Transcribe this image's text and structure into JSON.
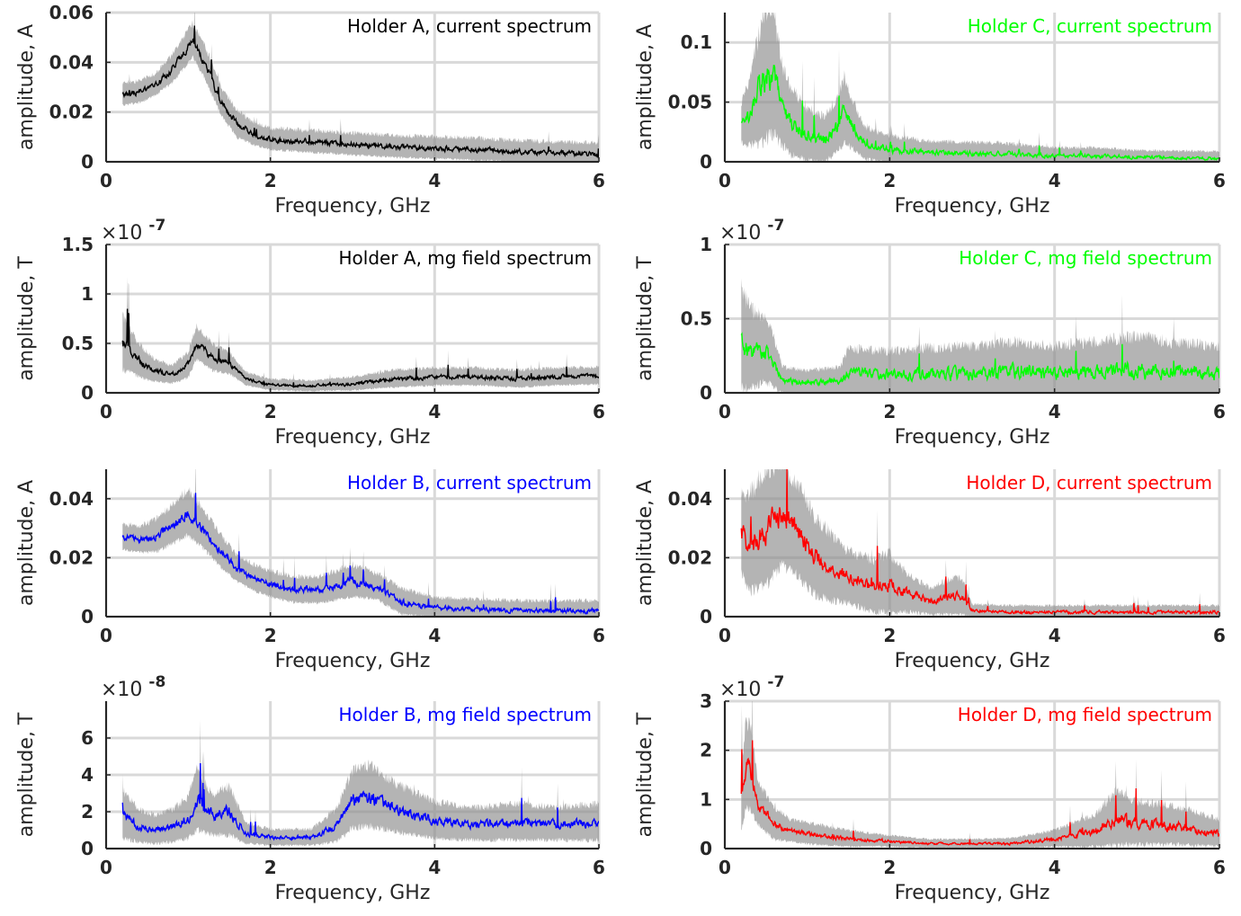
{
  "colors": {
    "grid": "#d9d9d9",
    "axis": "#262626",
    "band": "#8c8c8c"
  },
  "chart_data": [
    {
      "type": "line",
      "title": "Holder A, current spectrum",
      "title_color": "#000000",
      "xlabel": "Frequency, GHz",
      "ylabel": "amplitude, A",
      "xlim": [
        0,
        6
      ],
      "ylim": [
        0,
        0.06
      ],
      "x_ticks": [
        0,
        2,
        4,
        6
      ],
      "x_tick_labels": [
        "0",
        "2",
        "4",
        "6"
      ],
      "y_ticks": [
        0,
        0.02,
        0.04,
        0.06
      ],
      "y_tick_labels": [
        "0",
        "0.02",
        "0.04",
        "0.06"
      ],
      "exponent": "",
      "grid": true,
      "series": [
        {
          "color": "#000000",
          "x": [
            0.2,
            0.4,
            0.6,
            0.8,
            1.0,
            1.05,
            1.2,
            1.4,
            1.6,
            1.8,
            2.0,
            2.5,
            3.0,
            3.5,
            4.0,
            4.5,
            5.0,
            5.5,
            6.0
          ],
          "values": [
            0.027,
            0.028,
            0.031,
            0.037,
            0.046,
            0.049,
            0.04,
            0.024,
            0.015,
            0.011,
            0.009,
            0.008,
            0.007,
            0.006,
            0.0055,
            0.005,
            0.004,
            0.0035,
            0.003
          ],
          "spread": [
            0.004,
            0.004,
            0.004,
            0.005,
            0.006,
            0.006,
            0.006,
            0.005,
            0.005,
            0.004,
            0.004,
            0.004,
            0.004,
            0.004,
            0.004,
            0.004,
            0.004,
            0.004,
            0.004
          ]
        }
      ]
    },
    {
      "type": "line",
      "title": "Holder C, current spectrum",
      "title_color": "#00ff00",
      "xlabel": "Frequency, GHz",
      "ylabel": "amplitude, A",
      "xlim": [
        0,
        6
      ],
      "ylim": [
        0,
        0.125
      ],
      "x_ticks": [
        0,
        2,
        4,
        6
      ],
      "x_tick_labels": [
        "0",
        "2",
        "4",
        "6"
      ],
      "y_ticks": [
        0,
        0.05,
        0.1
      ],
      "y_tick_labels": [
        "0",
        "0.05",
        "0.1"
      ],
      "exponent": "",
      "grid": true,
      "series": [
        {
          "color": "#00ff00",
          "x": [
            0.2,
            0.3,
            0.4,
            0.5,
            0.6,
            0.7,
            0.8,
            1.0,
            1.2,
            1.35,
            1.45,
            1.55,
            1.7,
            2.0,
            2.5,
            3.0,
            3.3,
            4.0,
            4.5,
            5.0,
            6.0
          ],
          "values": [
            0.032,
            0.04,
            0.058,
            0.072,
            0.07,
            0.045,
            0.032,
            0.022,
            0.018,
            0.028,
            0.042,
            0.03,
            0.015,
            0.01,
            0.008,
            0.007,
            0.007,
            0.005,
            0.005,
            0.004,
            0.003
          ],
          "spread": [
            0.015,
            0.025,
            0.04,
            0.05,
            0.045,
            0.03,
            0.025,
            0.02,
            0.018,
            0.02,
            0.025,
            0.018,
            0.012,
            0.01,
            0.008,
            0.008,
            0.008,
            0.006,
            0.006,
            0.005,
            0.005
          ]
        }
      ]
    },
    {
      "type": "line",
      "title": "Holder A, mg field spectrum",
      "title_color": "#000000",
      "xlabel": "Frequency, GHz",
      "ylabel": "amplitude, T",
      "xlim": [
        0,
        6
      ],
      "ylim": [
        0,
        1.5
      ],
      "x_ticks": [
        0,
        2,
        4,
        6
      ],
      "x_tick_labels": [
        "0",
        "2",
        "4",
        "6"
      ],
      "y_ticks": [
        0,
        0.5,
        1,
        1.5
      ],
      "y_tick_labels": [
        "0",
        "0.5",
        "1",
        "1.5"
      ],
      "exponent": "-7",
      "grid": true,
      "series": [
        {
          "color": "#000000",
          "x": [
            0.2,
            0.4,
            0.6,
            0.8,
            1.0,
            1.1,
            1.3,
            1.5,
            1.7,
            2.0,
            2.5,
            3.0,
            3.5,
            4.0,
            4.5,
            5.0,
            5.5,
            6.0
          ],
          "values": [
            0.5,
            0.32,
            0.22,
            0.18,
            0.28,
            0.5,
            0.35,
            0.3,
            0.14,
            0.08,
            0.07,
            0.09,
            0.14,
            0.16,
            0.16,
            0.14,
            0.16,
            0.17
          ],
          "spread": [
            0.25,
            0.15,
            0.1,
            0.08,
            0.12,
            0.15,
            0.12,
            0.1,
            0.06,
            0.05,
            0.05,
            0.06,
            0.08,
            0.08,
            0.08,
            0.08,
            0.08,
            0.08
          ]
        }
      ]
    },
    {
      "type": "line",
      "title": "Holder C, mg field spectrum",
      "title_color": "#00ff00",
      "xlabel": "Frequency, GHz",
      "ylabel": "amplitude, T",
      "xlim": [
        0,
        6
      ],
      "ylim": [
        0,
        1.0
      ],
      "x_ticks": [
        0,
        2,
        4,
        6
      ],
      "x_tick_labels": [
        "0",
        "2",
        "4",
        "6"
      ],
      "y_ticks": [
        0,
        0.5,
        1
      ],
      "y_tick_labels": [
        "0",
        "0.5",
        "1"
      ],
      "exponent": "-7",
      "grid": true,
      "series": [
        {
          "color": "#00ff00",
          "x": [
            0.2,
            0.3,
            0.45,
            0.55,
            0.7,
            1.0,
            1.4,
            1.5,
            2.0,
            2.5,
            3.0,
            3.5,
            4.0,
            4.5,
            5.0,
            5.5,
            6.0
          ],
          "values": [
            0.35,
            0.28,
            0.28,
            0.25,
            0.08,
            0.07,
            0.08,
            0.14,
            0.12,
            0.12,
            0.13,
            0.14,
            0.13,
            0.14,
            0.15,
            0.13,
            0.13
          ],
          "spread": [
            0.3,
            0.25,
            0.2,
            0.18,
            0.08,
            0.07,
            0.08,
            0.14,
            0.14,
            0.16,
            0.16,
            0.18,
            0.16,
            0.18,
            0.2,
            0.18,
            0.16
          ]
        }
      ]
    },
    {
      "type": "line",
      "title": "Holder B, current spectrum",
      "title_color": "#0000ff",
      "xlabel": "Frequency, GHz",
      "ylabel": "amplitude, A",
      "xlim": [
        0,
        6
      ],
      "ylim": [
        0,
        0.05
      ],
      "x_ticks": [
        0,
        2,
        4,
        6
      ],
      "x_tick_labels": [
        "0",
        "2",
        "4",
        "6"
      ],
      "y_ticks": [
        0,
        0.02,
        0.04
      ],
      "y_tick_labels": [
        "0",
        "0.02",
        "0.04"
      ],
      "exponent": "",
      "grid": true,
      "series": [
        {
          "color": "#0000ff",
          "x": [
            0.2,
            0.4,
            0.6,
            0.8,
            1.0,
            1.2,
            1.4,
            1.6,
            1.8,
            2.0,
            2.3,
            2.6,
            3.0,
            3.3,
            3.6,
            4.0,
            4.5,
            5.0,
            5.5,
            6.0
          ],
          "values": [
            0.027,
            0.026,
            0.027,
            0.031,
            0.035,
            0.029,
            0.022,
            0.016,
            0.013,
            0.011,
            0.009,
            0.009,
            0.012,
            0.01,
            0.005,
            0.003,
            0.0025,
            0.002,
            0.002,
            0.002
          ],
          "spread": [
            0.004,
            0.004,
            0.005,
            0.006,
            0.007,
            0.006,
            0.005,
            0.004,
            0.004,
            0.004,
            0.004,
            0.004,
            0.005,
            0.004,
            0.004,
            0.003,
            0.003,
            0.003,
            0.003,
            0.003
          ]
        }
      ]
    },
    {
      "type": "line",
      "title": "Holder D, current spectrum",
      "title_color": "#ff0000",
      "xlabel": "Frequency, GHz",
      "ylabel": "amplitude, A",
      "xlim": [
        0,
        6
      ],
      "ylim": [
        0,
        0.05
      ],
      "x_ticks": [
        0,
        2,
        4,
        6
      ],
      "x_tick_labels": [
        "0",
        "2",
        "4",
        "6"
      ],
      "y_ticks": [
        0,
        0.02,
        0.04
      ],
      "y_tick_labels": [
        "0",
        "0.02",
        "0.04"
      ],
      "exponent": "",
      "grid": true,
      "series": [
        {
          "color": "#ff0000",
          "x": [
            0.2,
            0.3,
            0.5,
            0.7,
            0.9,
            1.1,
            1.3,
            1.5,
            1.8,
            2.0,
            2.2,
            2.5,
            2.8,
            2.9,
            3.0,
            3.5,
            4.0,
            4.5,
            5.0,
            5.5,
            6.0
          ],
          "values": [
            0.028,
            0.024,
            0.03,
            0.034,
            0.028,
            0.02,
            0.016,
            0.013,
            0.01,
            0.011,
            0.008,
            0.005,
            0.007,
            0.006,
            0.002,
            0.0015,
            0.0015,
            0.0015,
            0.0015,
            0.0015,
            0.0015
          ],
          "spread": [
            0.012,
            0.015,
            0.018,
            0.016,
            0.014,
            0.012,
            0.01,
            0.008,
            0.008,
            0.009,
            0.006,
            0.004,
            0.006,
            0.005,
            0.002,
            0.002,
            0.002,
            0.002,
            0.002,
            0.002,
            0.002
          ]
        }
      ]
    },
    {
      "type": "line",
      "title": "Holder B, mg field spectrum",
      "title_color": "#0000ff",
      "xlabel": "Frequency, GHz",
      "ylabel": "amplitude, T",
      "xlim": [
        0,
        6
      ],
      "ylim": [
        0,
        8
      ],
      "x_ticks": [
        0,
        2,
        4,
        6
      ],
      "x_tick_labels": [
        "0",
        "2",
        "4",
        "6"
      ],
      "y_ticks": [
        0,
        2,
        4,
        6
      ],
      "y_tick_labels": [
        "0",
        "2",
        "4",
        "6"
      ],
      "exponent": "-8",
      "grid": true,
      "series": [
        {
          "color": "#0000ff",
          "x": [
            0.2,
            0.4,
            0.6,
            0.8,
            1.0,
            1.1,
            1.3,
            1.5,
            1.7,
            2.0,
            2.5,
            2.8,
            3.0,
            3.2,
            3.5,
            4.0,
            4.5,
            5.0,
            5.5,
            6.0
          ],
          "values": [
            1.8,
            1.2,
            1.0,
            1.2,
            1.6,
            2.6,
            1.8,
            2.0,
            0.8,
            0.6,
            0.6,
            1.2,
            2.6,
            2.8,
            2.2,
            1.5,
            1.3,
            1.4,
            1.3,
            1.4
          ],
          "spread": [
            1.2,
            0.8,
            0.7,
            0.8,
            1.0,
            1.5,
            1.0,
            1.2,
            0.5,
            0.4,
            0.4,
            0.8,
            1.4,
            1.5,
            1.2,
            0.9,
            0.8,
            0.9,
            0.8,
            0.9
          ]
        }
      ]
    },
    {
      "type": "line",
      "title": "Holder D, mg field spectrum",
      "title_color": "#ff0000",
      "xlabel": "Frequency, GHz",
      "ylabel": "amplitude, T",
      "xlim": [
        0,
        6
      ],
      "ylim": [
        0,
        3
      ],
      "x_ticks": [
        0,
        2,
        4,
        6
      ],
      "x_tick_labels": [
        "0",
        "2",
        "4",
        "6"
      ],
      "y_ticks": [
        0,
        1,
        2,
        3
      ],
      "y_tick_labels": [
        "0",
        "1",
        "2",
        "3"
      ],
      "exponent": "-7",
      "grid": true,
      "series": [
        {
          "color": "#ff0000",
          "x": [
            0.2,
            0.25,
            0.3,
            0.4,
            0.6,
            0.8,
            1.0,
            1.5,
            2.0,
            2.5,
            3.0,
            3.5,
            4.0,
            4.5,
            4.75,
            5.0,
            5.5,
            6.0
          ],
          "values": [
            1.0,
            1.6,
            1.7,
            0.9,
            0.5,
            0.35,
            0.3,
            0.2,
            0.15,
            0.1,
            0.1,
            0.1,
            0.2,
            0.35,
            0.6,
            0.5,
            0.45,
            0.3
          ],
          "spread": [
            0.6,
            0.8,
            0.8,
            0.4,
            0.3,
            0.2,
            0.2,
            0.15,
            0.1,
            0.08,
            0.08,
            0.1,
            0.15,
            0.3,
            0.5,
            0.4,
            0.35,
            0.25
          ]
        }
      ]
    }
  ]
}
